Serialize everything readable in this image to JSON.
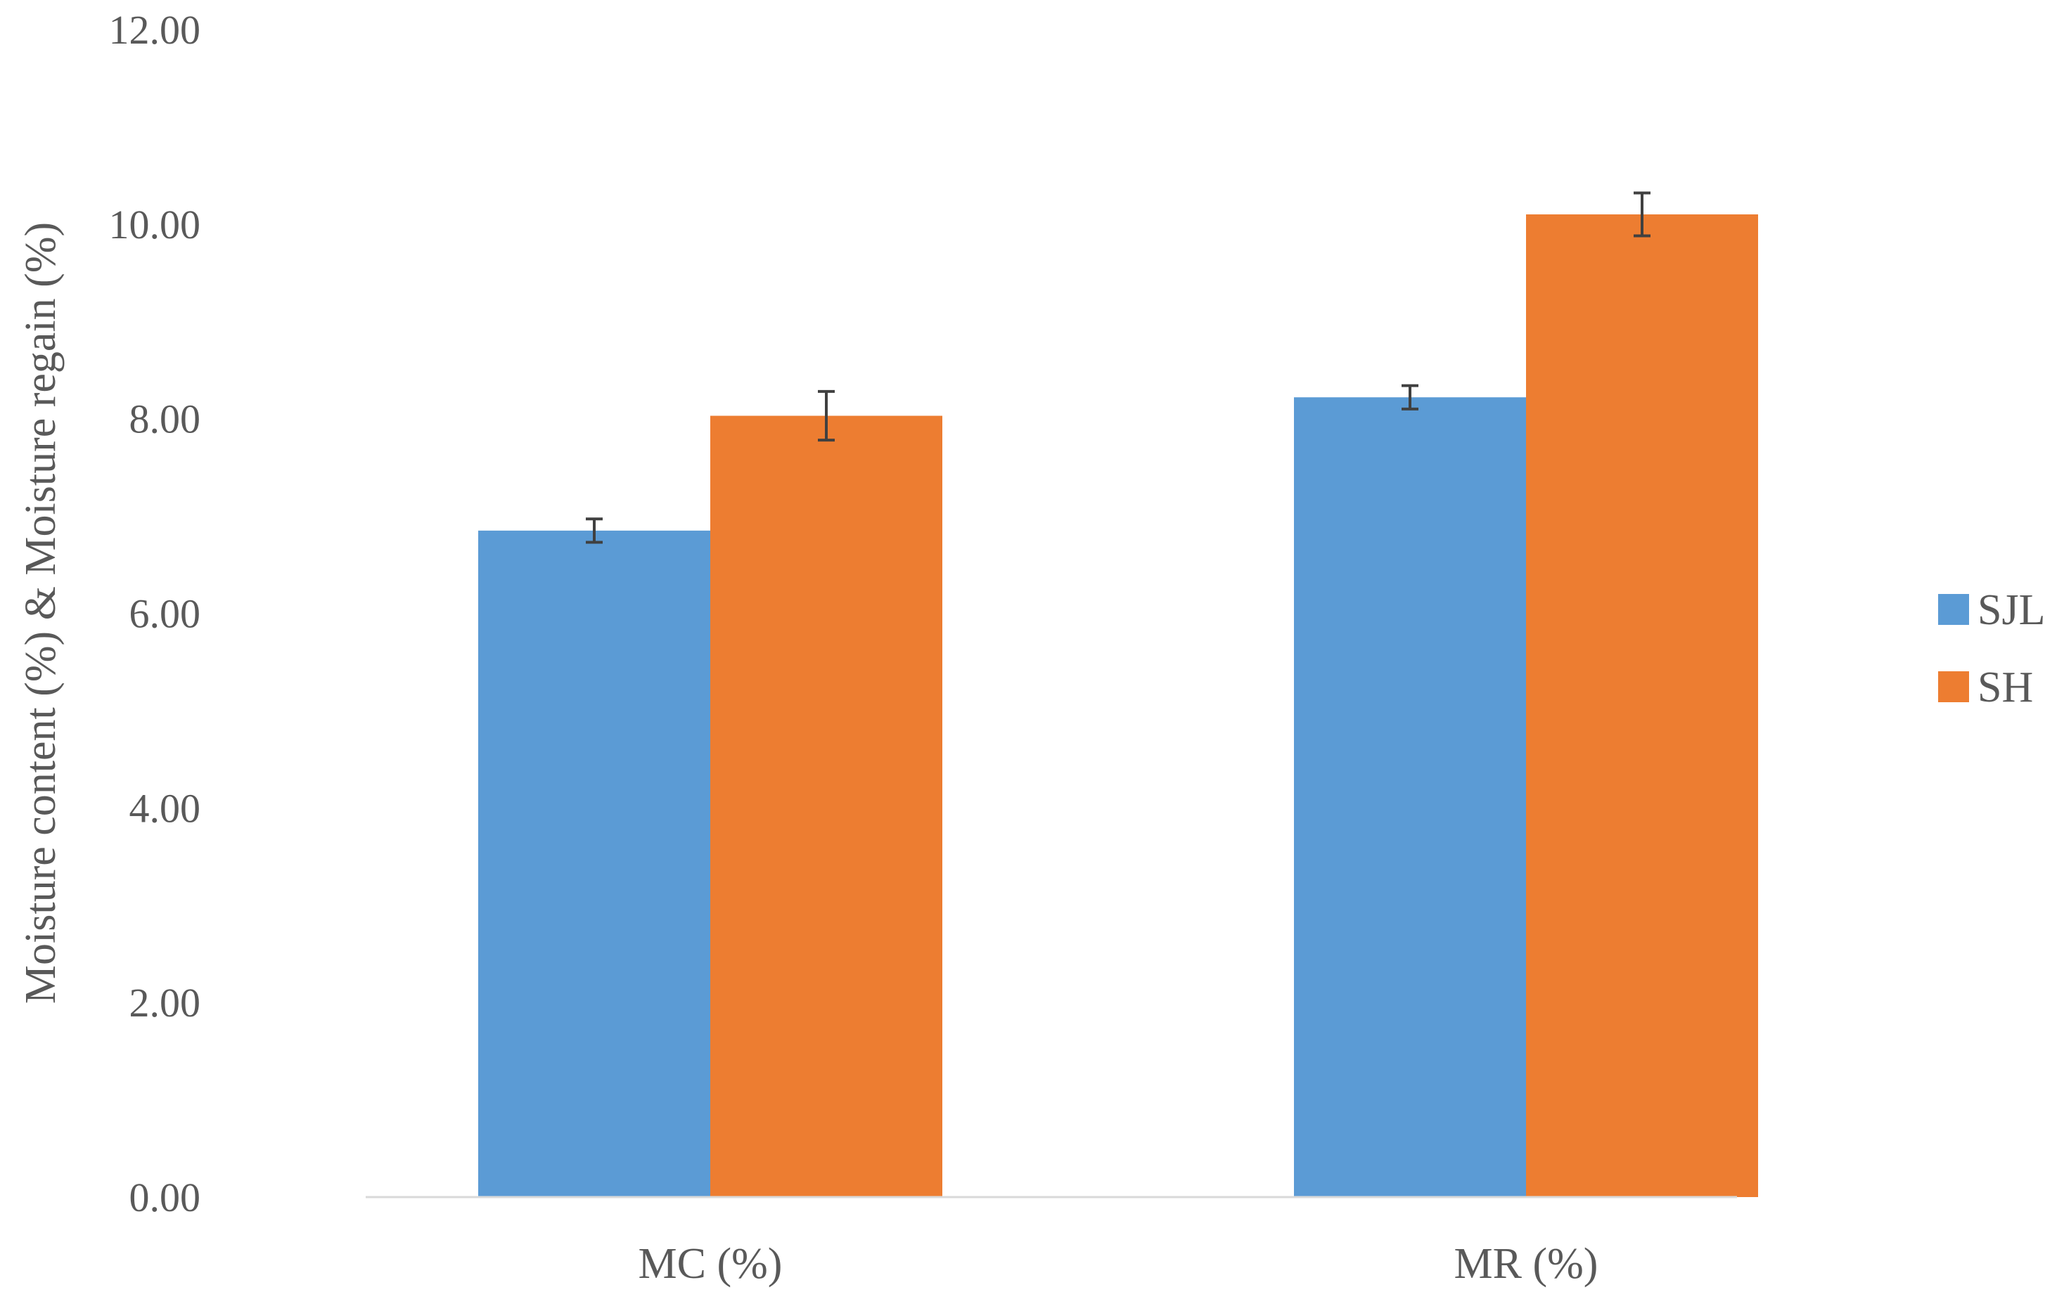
{
  "chart_data": {
    "type": "bar",
    "title": "",
    "xlabel": "",
    "ylabel": "Moisture content (%) & Moisture regain (%)",
    "categories": [
      "MC (%)",
      "MR (%)"
    ],
    "series": [
      {
        "name": "SJL",
        "color": "#5b9bd5",
        "values": [
          6.85,
          8.22
        ],
        "errors": [
          0.12,
          0.12
        ]
      },
      {
        "name": "SH",
        "color": "#ed7d31",
        "values": [
          8.03,
          10.1
        ],
        "errors": [
          0.25,
          0.22
        ]
      }
    ],
    "ylim": [
      0,
      12
    ],
    "yticks": [
      "0.00",
      "2.00",
      "4.00",
      "6.00",
      "8.00",
      "10.00",
      "12.00"
    ],
    "ytick_values": [
      0,
      2,
      4,
      6,
      8,
      10,
      12
    ],
    "grid": false,
    "legend_position": "right"
  }
}
